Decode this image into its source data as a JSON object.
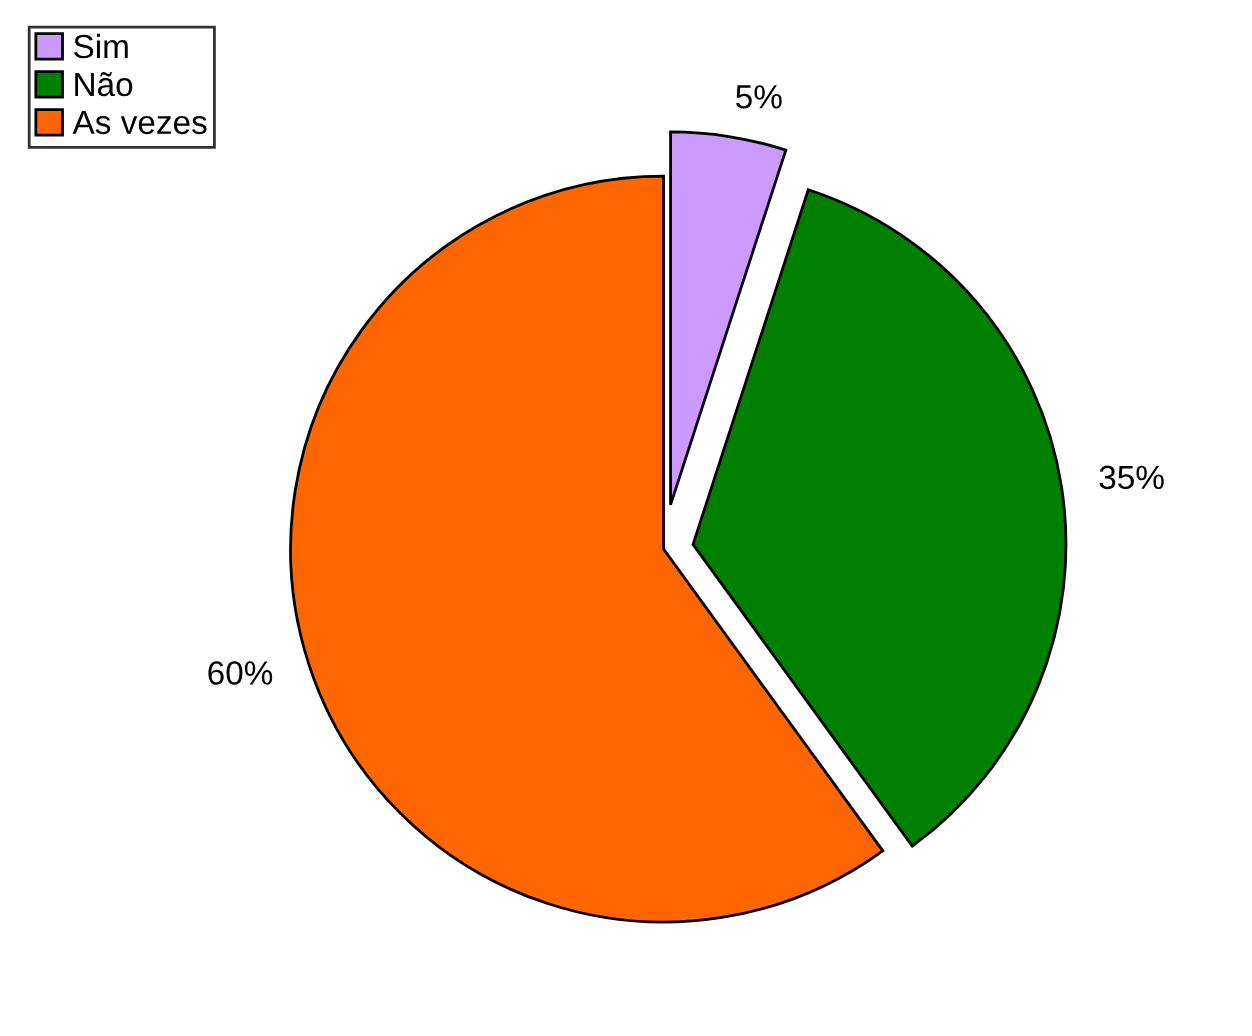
{
  "chart_data": {
    "type": "pie",
    "categories": [
      "Sim",
      "Não",
      "As vezes"
    ],
    "values": [
      5,
      35,
      60
    ],
    "colors": [
      "#cc99ff",
      "#008000",
      "#ff6600"
    ],
    "value_labels": [
      "5%",
      "35%",
      "60%"
    ],
    "legend": "top left"
  }
}
